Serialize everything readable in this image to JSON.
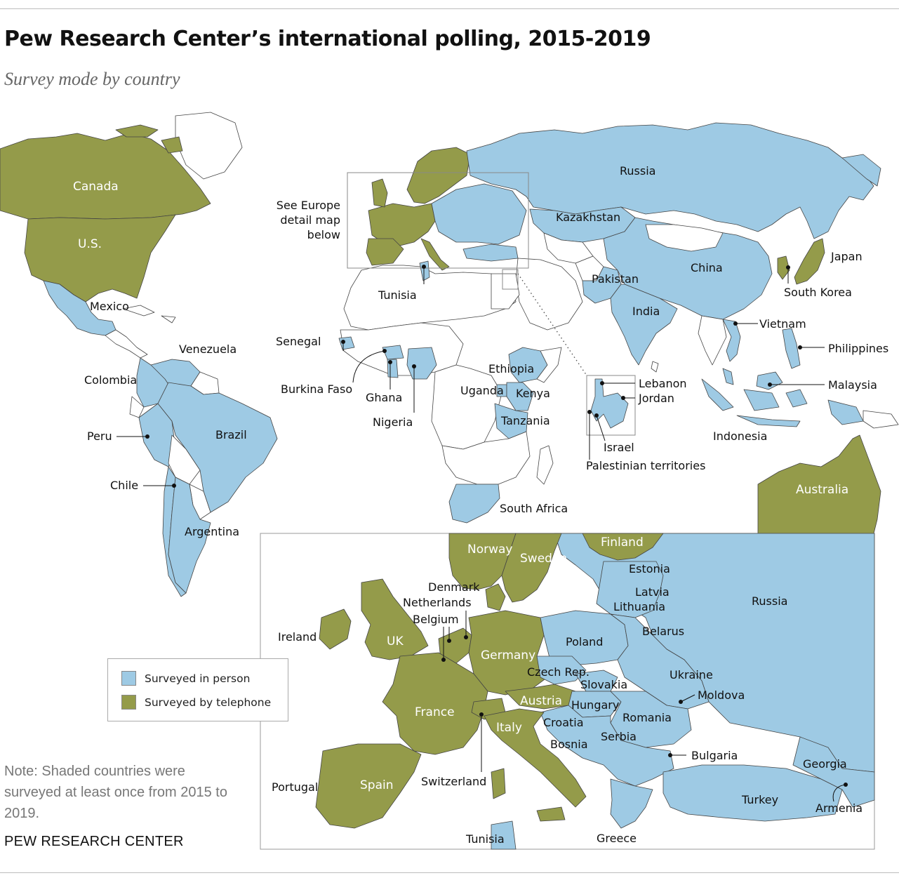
{
  "title": "Pew Research Center’s international polling, 2015-2019",
  "subtitle": "Survey mode by country",
  "legend": {
    "in_person": "Surveyed in person",
    "telephone": "Surveyed by telephone"
  },
  "colors": {
    "in_person": "#9ecae4",
    "telephone": "#949b4a",
    "not_surveyed": "#ffffff",
    "border": "#444444"
  },
  "europe_callout": [
    "See Europe",
    "detail map",
    "below"
  ],
  "world_labels": {
    "canada": "Canada",
    "us": "U.S.",
    "mexico": "Mexico",
    "venezuela": "Venezuela",
    "colombia": "Colombia",
    "peru": "Peru",
    "brazil": "Brazil",
    "chile": "Chile",
    "argentina": "Argentina",
    "russia": "Russia",
    "kazakhstan": "Kazakhstan",
    "china": "China",
    "japan": "Japan",
    "south_korea": "South Korea",
    "pakistan": "Pakistan",
    "india": "India",
    "vietnam": "Vietnam",
    "philippines": "Philippines",
    "malaysia": "Malaysia",
    "indonesia": "Indonesia",
    "australia": "Australia",
    "tunisia": "Tunisia",
    "senegal": "Senegal",
    "burkina_faso": "Burkina Faso",
    "ghana": "Ghana",
    "nigeria": "Nigeria",
    "ethiopia": "Ethiopia",
    "uganda": "Uganda",
    "kenya": "Kenya",
    "tanzania": "Tanzania",
    "south_africa": "South Africa",
    "lebanon": "Lebanon",
    "jordan": "Jordan",
    "israel": "Israel",
    "palestinian_territories": "Palestinian territories"
  },
  "europe_labels": {
    "norway": "Norway",
    "sweden": "Sweden",
    "finland": "Finland",
    "estonia": "Estonia",
    "latvia": "Latvia",
    "lithuania": "Lithuania",
    "russia": "Russia",
    "denmark": "Denmark",
    "netherlands": "Netherlands",
    "belgium": "Belgium",
    "ireland": "Ireland",
    "uk": "UK",
    "germany": "Germany",
    "poland": "Poland",
    "belarus": "Belarus",
    "czech_rep": "Czech Rep.",
    "slovakia": "Slovakia",
    "ukraine": "Ukraine",
    "austria": "Austria",
    "hungary": "Hungary",
    "moldova": "Moldova",
    "france": "France",
    "romania": "Romania",
    "croatia": "Croatia",
    "italy": "Italy",
    "serbia": "Serbia",
    "bosnia": "Bosnia",
    "bulgaria": "Bulgaria",
    "georgia": "Georgia",
    "portugal": "Portugal",
    "spain": "Spain",
    "switzerland": "Switzerland",
    "turkey": "Turkey",
    "armenia": "Armenia",
    "tunisia": "Tunisia",
    "greece": "Greece"
  },
  "note": "Note: Shaded countries were surveyed at least once from 2015 to 2019.",
  "source": "PEW RESEARCH CENTER"
}
